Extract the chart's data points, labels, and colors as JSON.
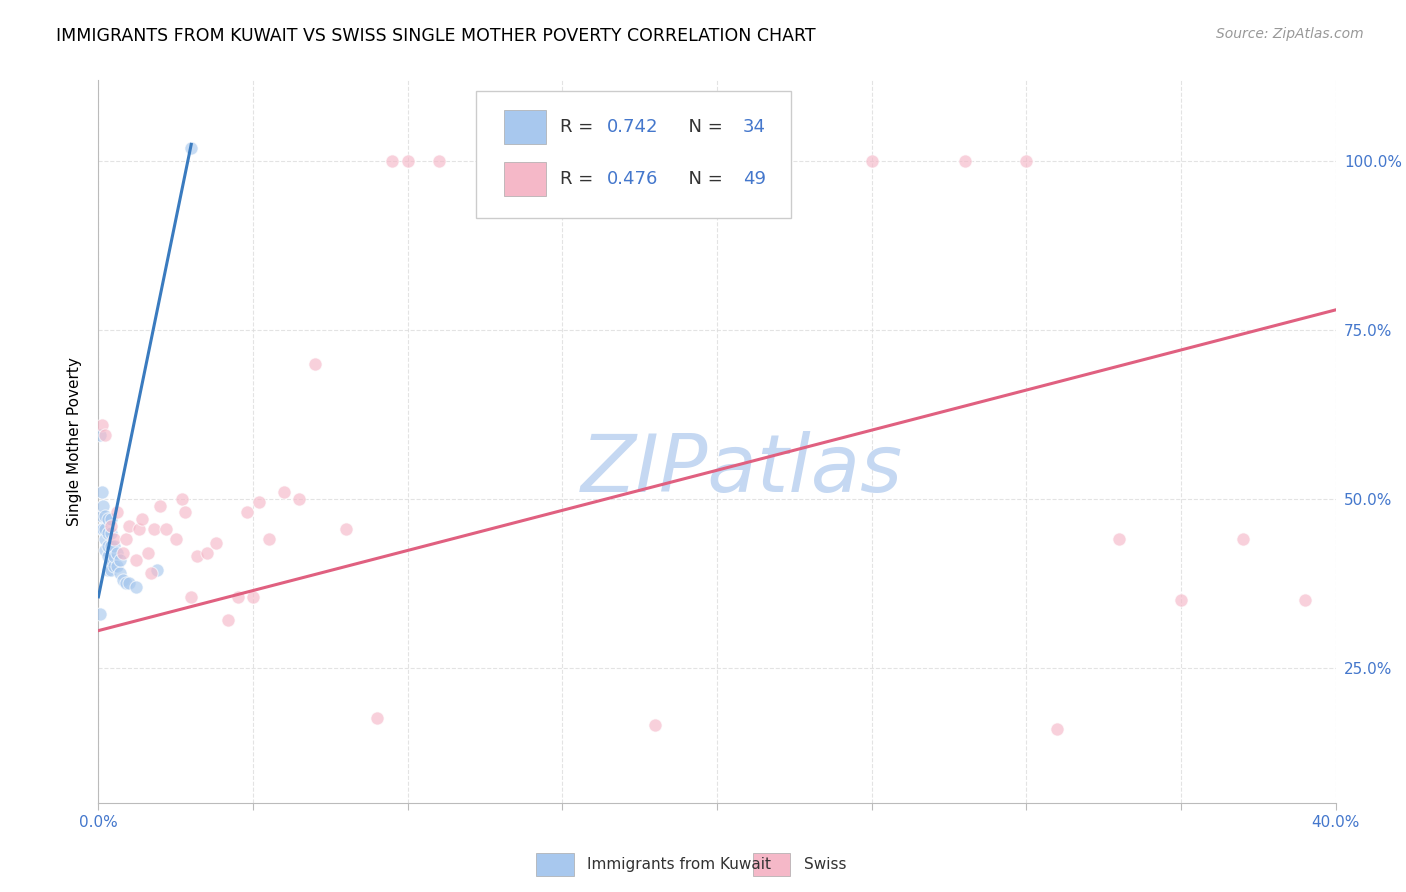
{
  "title": "IMMIGRANTS FROM KUWAIT VS SWISS SINGLE MOTHER POVERTY CORRELATION CHART",
  "source": "Source: ZipAtlas.com",
  "ylabel": "Single Mother Poverty",
  "ytick_labels": [
    "25.0%",
    "50.0%",
    "75.0%",
    "100.0%"
  ],
  "ytick_values": [
    0.25,
    0.5,
    0.75,
    1.0
  ],
  "watermark": "ZIPatlas",
  "blue_scatter_x": [
    0.0005,
    0.0005,
    0.001,
    0.001,
    0.001,
    0.0015,
    0.0015,
    0.002,
    0.002,
    0.002,
    0.002,
    0.003,
    0.003,
    0.003,
    0.003,
    0.003,
    0.004,
    0.004,
    0.004,
    0.004,
    0.004,
    0.005,
    0.005,
    0.005,
    0.006,
    0.006,
    0.007,
    0.007,
    0.008,
    0.009,
    0.01,
    0.012,
    0.019,
    0.03
  ],
  "blue_scatter_y": [
    0.595,
    0.33,
    0.455,
    0.475,
    0.51,
    0.455,
    0.49,
    0.425,
    0.44,
    0.455,
    0.475,
    0.395,
    0.415,
    0.43,
    0.45,
    0.47,
    0.395,
    0.41,
    0.43,
    0.45,
    0.47,
    0.4,
    0.415,
    0.43,
    0.4,
    0.42,
    0.39,
    0.41,
    0.38,
    0.375,
    0.375,
    0.37,
    0.395,
    1.02
  ],
  "pink_scatter_x": [
    0.001,
    0.002,
    0.004,
    0.005,
    0.006,
    0.008,
    0.009,
    0.01,
    0.012,
    0.013,
    0.014,
    0.016,
    0.017,
    0.018,
    0.02,
    0.022,
    0.025,
    0.027,
    0.028,
    0.03,
    0.032,
    0.035,
    0.038,
    0.042,
    0.045,
    0.048,
    0.05,
    0.052,
    0.055,
    0.06,
    0.065,
    0.07,
    0.08,
    0.09,
    0.095,
    0.1,
    0.11,
    0.13,
    0.18,
    0.2,
    0.22,
    0.25,
    0.28,
    0.3,
    0.31,
    0.33,
    0.35,
    0.37,
    0.39
  ],
  "pink_scatter_y": [
    0.61,
    0.595,
    0.46,
    0.44,
    0.48,
    0.42,
    0.44,
    0.46,
    0.41,
    0.455,
    0.47,
    0.42,
    0.39,
    0.455,
    0.49,
    0.455,
    0.44,
    0.5,
    0.48,
    0.355,
    0.415,
    0.42,
    0.435,
    0.32,
    0.355,
    0.48,
    0.355,
    0.495,
    0.44,
    0.51,
    0.5,
    0.7,
    0.455,
    0.175,
    1.0,
    1.0,
    1.0,
    1.0,
    0.165,
    1.0,
    1.0,
    1.0,
    1.0,
    1.0,
    0.16,
    0.44,
    0.35,
    0.44,
    0.35
  ],
  "blue_line_x": [
    0.0,
    0.03
  ],
  "blue_line_y": [
    0.355,
    1.025
  ],
  "pink_line_x": [
    0.0,
    0.4
  ],
  "pink_line_y": [
    0.305,
    0.78
  ],
  "xlim": [
    0.0,
    0.4
  ],
  "ylim": [
    0.05,
    1.12
  ],
  "scatter_size": 90,
  "scatter_alpha": 0.65,
  "scatter_edge_color": "white",
  "scatter_edge_width": 0.8,
  "grid_color": "#dddddd",
  "grid_style": "--",
  "grid_alpha": 0.8,
  "title_fontsize": 12.5,
  "source_fontsize": 10,
  "axis_label_fontsize": 11,
  "tick_fontsize": 11,
  "legend_fontsize": 13,
  "watermark_color": "#c5d8f2",
  "watermark_fontsize": 58,
  "background_color": "white",
  "blue_color": "#a8c8ee",
  "pink_color": "#f5b8c8",
  "blue_line_color": "#3a7bbf",
  "pink_line_color": "#e06080",
  "right_axis_color": "#4477cc",
  "legend_R_N_color": "#4477cc",
  "legend_text_color": "#333333"
}
